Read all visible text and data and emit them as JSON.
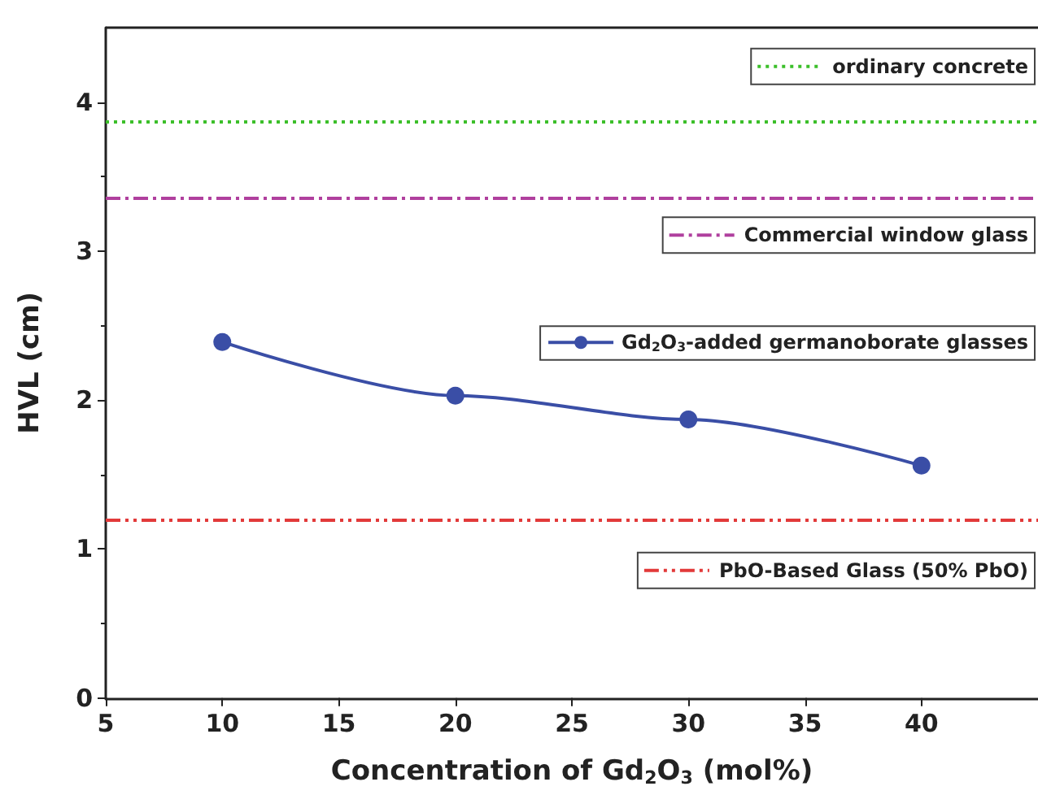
{
  "chart_data": {
    "type": "line",
    "xlabel": "Concentration of Gd$_{2}$O$_{3}$ (mol%)",
    "ylabel": "HVL (cm)",
    "x": [
      10,
      20,
      30,
      40
    ],
    "series": [
      {
        "name": "Gd$_{2}$O$_{3}$-added germanoborate glasses",
        "color": "#3a4ea6",
        "values": [
          2.39,
          2.03,
          1.87,
          1.56
        ]
      }
    ],
    "marker": "circle",
    "line_style": "solid",
    "legend": "right",
    "grid": false,
    "xlim": [
      5,
      45
    ],
    "xticks": [
      5,
      10,
      15,
      20,
      25,
      30,
      35,
      40
    ],
    "ylim": [
      0,
      4.5
    ],
    "yticks": [
      0,
      1,
      2,
      3,
      4
    ],
    "ref_lines": [
      {
        "axis": "y",
        "value": 3.87,
        "label": "ordinary concrete",
        "color": "#3cbf2a",
        "line_style": "dotted"
      },
      {
        "axis": "y",
        "value": 3.36,
        "label": "Commercial window glass",
        "color": "#b0409e",
        "line_style": "dashdot"
      },
      {
        "axis": "y",
        "value": 1.2,
        "label": "PbO-Based Glass (50% PbO)",
        "color": "#e23a3a",
        "line_style": "dashdotdot"
      }
    ]
  }
}
